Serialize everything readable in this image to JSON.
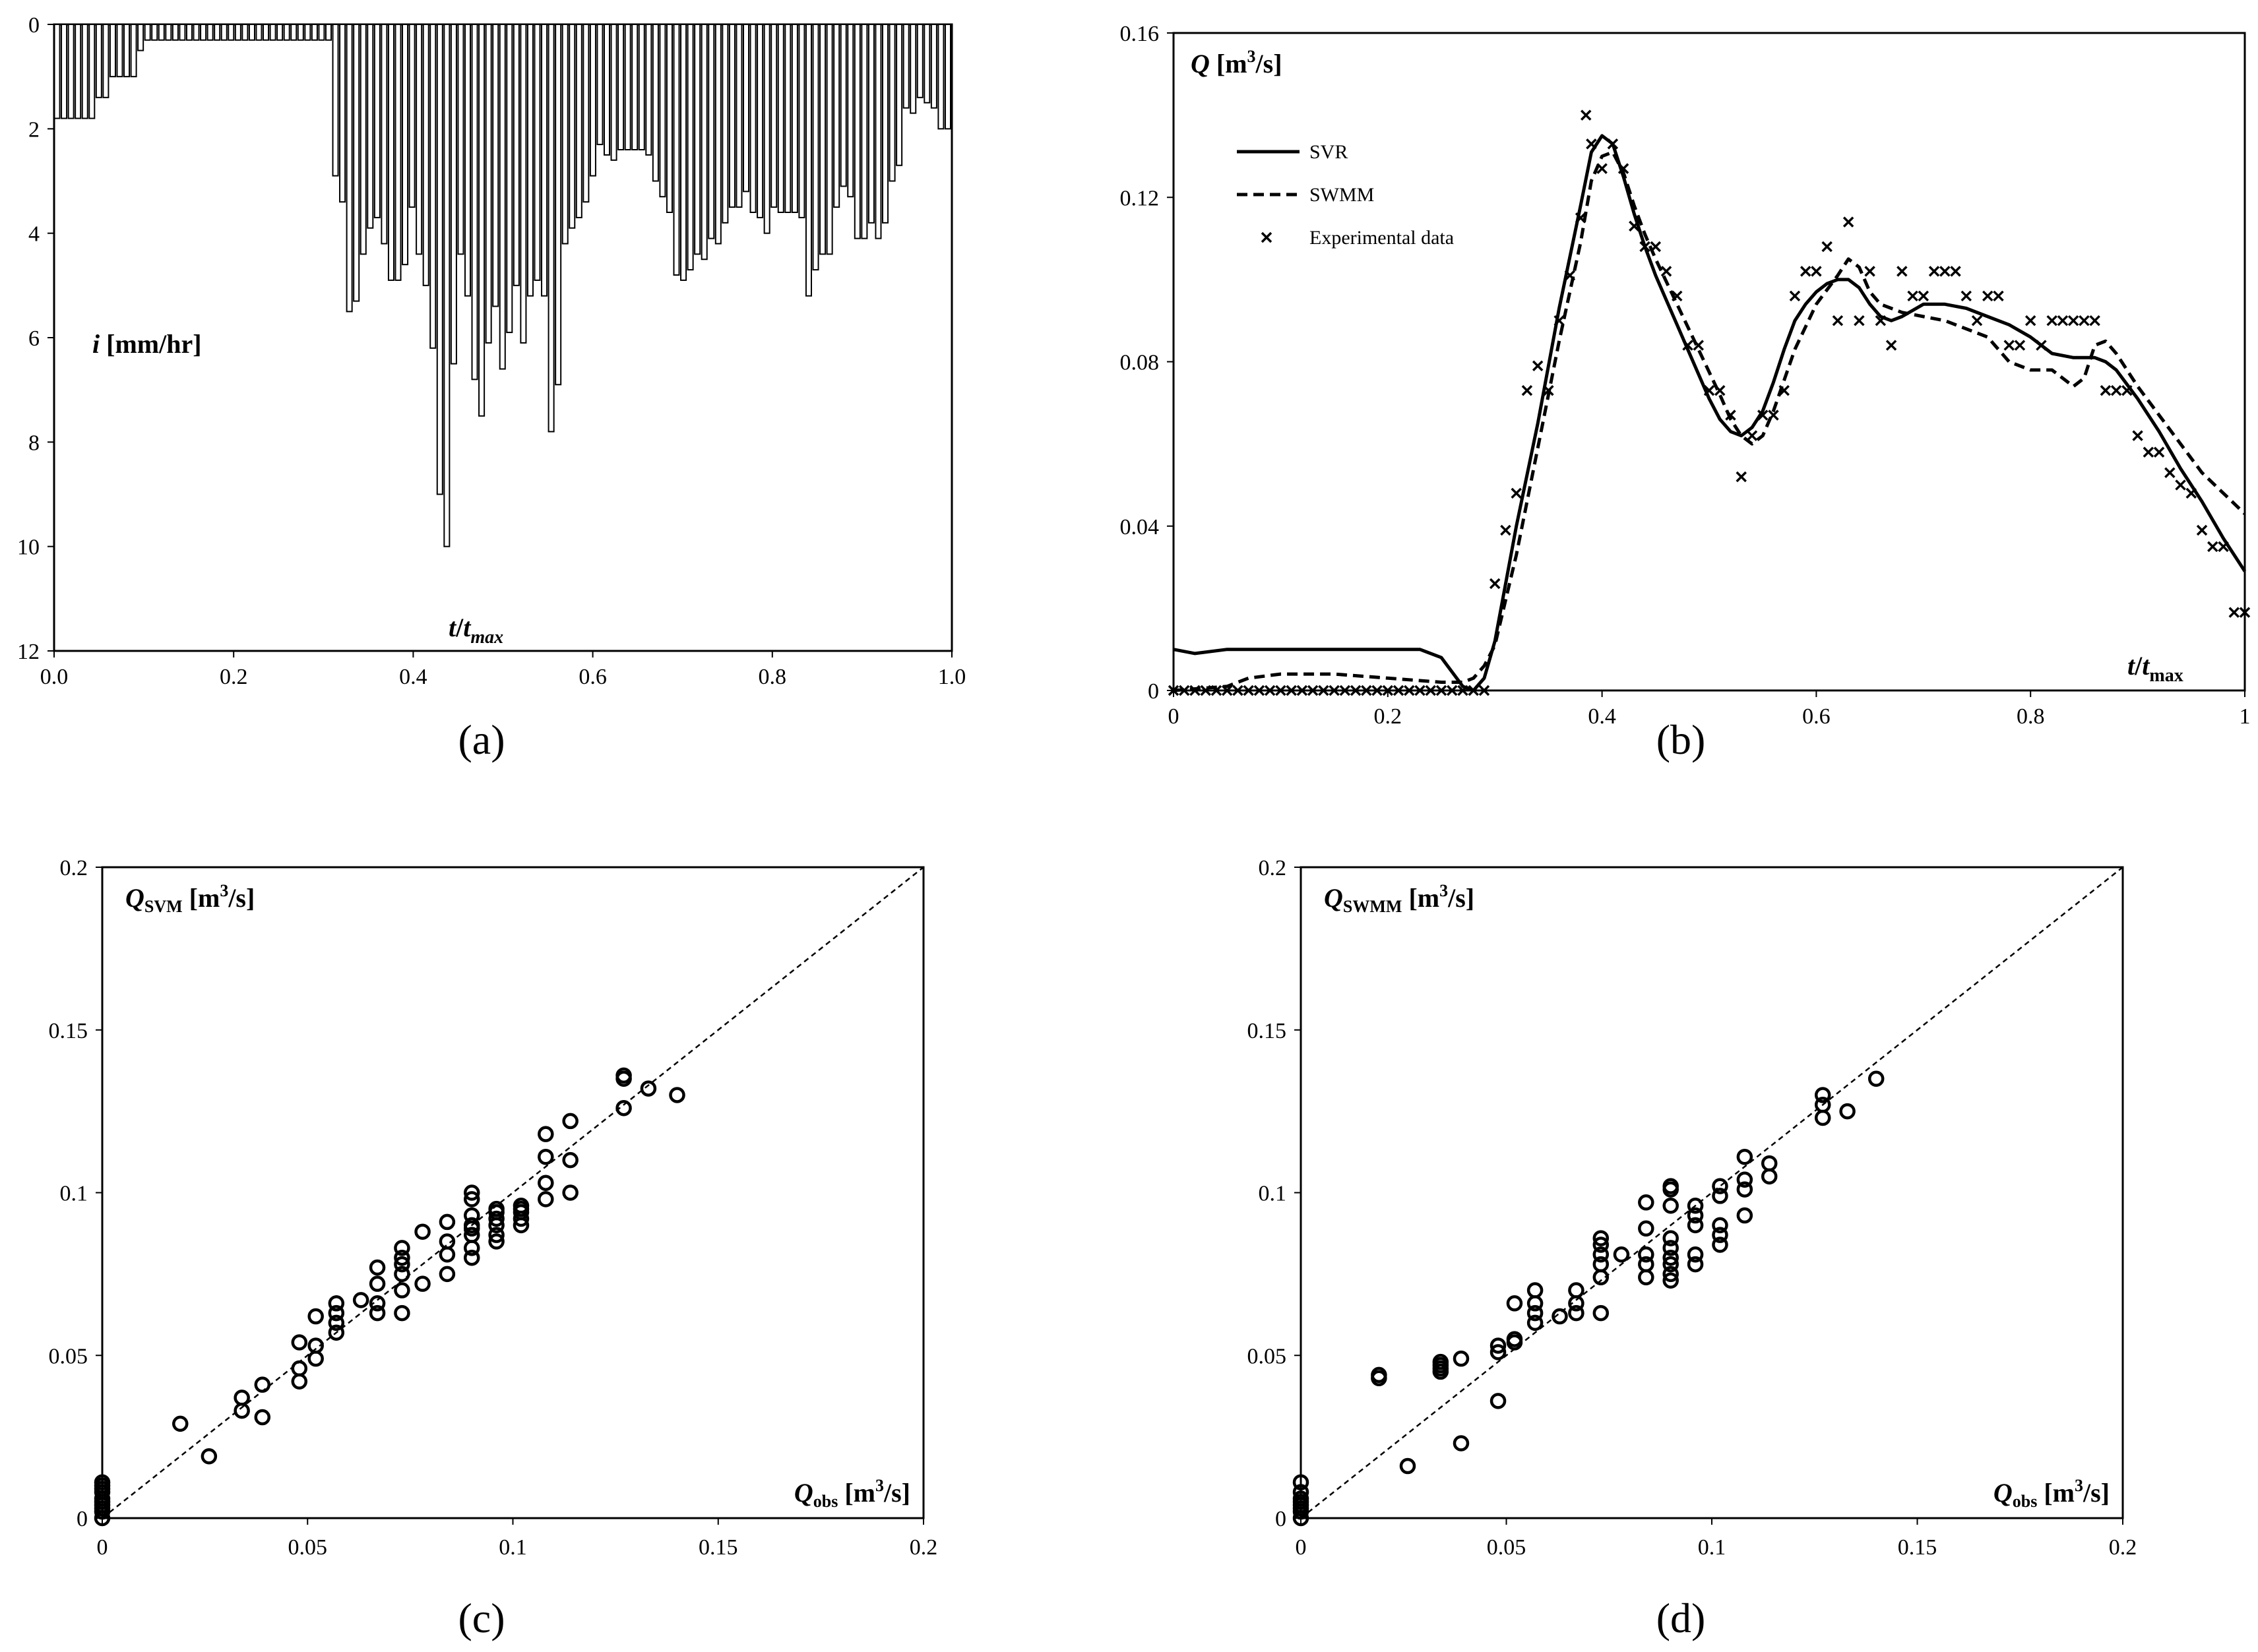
{
  "chart_data": [
    {
      "id": "a",
      "type": "bar",
      "caption": "(a)",
      "inverted_y": true,
      "ylabel": {
        "var": "i",
        "unit": "[mm/hr]"
      },
      "xlabel": {
        "t": "t",
        "sub": "max"
      },
      "xlim": [
        0,
        1
      ],
      "ylim": [
        0,
        12
      ],
      "xticks": [
        "0.0",
        "0.2",
        "0.4",
        "0.6",
        "0.8",
        "1.0"
      ],
      "yticks": [
        "0",
        "2",
        "4",
        "6",
        "8",
        "10",
        "12"
      ],
      "values": [
        1.8,
        1.8,
        1.8,
        1.8,
        1.8,
        1.8,
        1.4,
        1.4,
        1.0,
        1.0,
        1.0,
        1.0,
        0.5,
        0.3,
        0.3,
        0.3,
        0.3,
        0.3,
        0.3,
        0.3,
        0.3,
        0.3,
        0.3,
        0.3,
        0.3,
        0.3,
        0.3,
        0.3,
        0.3,
        0.3,
        0.3,
        0.3,
        0.3,
        0.3,
        0.3,
        0.3,
        0.3,
        0.3,
        0.3,
        0.3,
        2.9,
        3.4,
        5.5,
        5.3,
        4.4,
        3.9,
        3.7,
        4.2,
        4.9,
        4.9,
        4.6,
        3.5,
        4.4,
        5.0,
        6.2,
        9.0,
        10.0,
        6.5,
        4.4,
        5.2,
        6.8,
        7.5,
        6.1,
        5.4,
        6.6,
        5.9,
        5.0,
        6.1,
        5.2,
        4.9,
        5.2,
        7.8,
        6.9,
        4.2,
        3.9,
        3.7,
        3.4,
        2.9,
        2.3,
        2.5,
        2.6,
        2.4,
        2.4,
        2.4,
        2.4,
        2.5,
        3.0,
        3.3,
        3.6,
        4.8,
        4.9,
        4.7,
        4.4,
        4.5,
        4.1,
        4.2,
        3.8,
        3.5,
        3.5,
        3.2,
        3.6,
        3.7,
        4.0,
        3.5,
        3.6,
        3.6,
        3.6,
        3.7,
        5.2,
        4.7,
        4.4,
        4.4,
        3.5,
        3.1,
        3.3,
        4.1,
        4.1,
        3.8,
        4.1,
        3.8,
        3.0,
        2.7,
        1.6,
        1.7,
        1.4,
        1.5,
        1.6,
        2.0,
        2.0
      ]
    },
    {
      "id": "b",
      "type": "line",
      "caption": "(b)",
      "ylabel": {
        "var": "Q",
        "unit": "[m",
        "exp": "3",
        "unit_end": "/s]"
      },
      "xlabel": {
        "t": "t",
        "sub": "max"
      },
      "xlim": [
        0,
        1
      ],
      "ylim": [
        0,
        0.16
      ],
      "xticks": [
        "0",
        "0.2",
        "0.4",
        "0.6",
        "0.8",
        "1"
      ],
      "yticks": [
        "0",
        "0.04",
        "0.08",
        "0.12",
        "0.16"
      ],
      "legend_position": "top-left",
      "series": [
        {
          "name": "SVR",
          "style": "solid",
          "x": [
            0,
            0.02,
            0.05,
            0.1,
            0.15,
            0.2,
            0.23,
            0.25,
            0.27,
            0.28,
            0.29,
            0.3,
            0.32,
            0.34,
            0.36,
            0.38,
            0.39,
            0.4,
            0.41,
            0.42,
            0.43,
            0.44,
            0.45,
            0.46,
            0.47,
            0.48,
            0.49,
            0.5,
            0.51,
            0.52,
            0.53,
            0.54,
            0.55,
            0.56,
            0.57,
            0.58,
            0.59,
            0.6,
            0.61,
            0.62,
            0.63,
            0.64,
            0.65,
            0.66,
            0.67,
            0.68,
            0.7,
            0.72,
            0.74,
            0.76,
            0.78,
            0.8,
            0.82,
            0.84,
            0.86,
            0.87,
            0.88,
            0.9,
            0.92,
            0.94,
            0.96,
            0.98,
            1
          ],
          "y": [
            0.01,
            0.009,
            0.01,
            0.01,
            0.01,
            0.01,
            0.01,
            0.008,
            0.001,
            0.0,
            0.003,
            0.012,
            0.04,
            0.065,
            0.093,
            0.118,
            0.131,
            0.135,
            0.133,
            0.125,
            0.116,
            0.108,
            0.101,
            0.095,
            0.089,
            0.083,
            0.077,
            0.071,
            0.066,
            0.063,
            0.062,
            0.064,
            0.068,
            0.075,
            0.083,
            0.09,
            0.094,
            0.097,
            0.099,
            0.1,
            0.1,
            0.098,
            0.094,
            0.091,
            0.09,
            0.091,
            0.094,
            0.094,
            0.093,
            0.091,
            0.089,
            0.086,
            0.082,
            0.081,
            0.081,
            0.08,
            0.078,
            0.071,
            0.063,
            0.054,
            0.046,
            0.037,
            0.029
          ]
        },
        {
          "name": "SWMM",
          "style": "dashed",
          "x": [
            0,
            0.05,
            0.07,
            0.1,
            0.15,
            0.2,
            0.25,
            0.27,
            0.28,
            0.29,
            0.3,
            0.32,
            0.34,
            0.36,
            0.38,
            0.39,
            0.4,
            0.41,
            0.42,
            0.43,
            0.44,
            0.45,
            0.47,
            0.49,
            0.51,
            0.52,
            0.53,
            0.54,
            0.55,
            0.56,
            0.58,
            0.6,
            0.62,
            0.63,
            0.64,
            0.65,
            0.66,
            0.68,
            0.7,
            0.72,
            0.74,
            0.76,
            0.78,
            0.8,
            0.82,
            0.84,
            0.85,
            0.86,
            0.87,
            0.88,
            0.9,
            0.92,
            0.94,
            0.96,
            0.98,
            1
          ],
          "y": [
            0.0,
            0.001,
            0.003,
            0.004,
            0.004,
            0.003,
            0.002,
            0.002,
            0.003,
            0.006,
            0.011,
            0.033,
            0.059,
            0.085,
            0.109,
            0.124,
            0.13,
            0.131,
            0.126,
            0.118,
            0.111,
            0.105,
            0.094,
            0.083,
            0.072,
            0.066,
            0.062,
            0.06,
            0.062,
            0.068,
            0.083,
            0.094,
            0.101,
            0.105,
            0.103,
            0.097,
            0.094,
            0.092,
            0.091,
            0.09,
            0.088,
            0.086,
            0.08,
            0.078,
            0.078,
            0.074,
            0.076,
            0.084,
            0.085,
            0.082,
            0.074,
            0.067,
            0.06,
            0.053,
            0.048,
            0.043
          ]
        },
        {
          "name": "Experimental data",
          "style": "x-marker",
          "x": [
            0,
            0.01,
            0.02,
            0.03,
            0.04,
            0.05,
            0.06,
            0.07,
            0.08,
            0.09,
            0.1,
            0.11,
            0.12,
            0.13,
            0.14,
            0.15,
            0.16,
            0.17,
            0.18,
            0.19,
            0.2,
            0.21,
            0.22,
            0.23,
            0.24,
            0.25,
            0.26,
            0.27,
            0.28,
            0.29,
            0.3,
            0.31,
            0.32,
            0.33,
            0.34,
            0.35,
            0.36,
            0.37,
            0.38,
            0.385,
            0.39,
            0.4,
            0.41,
            0.42,
            0.43,
            0.44,
            0.45,
            0.46,
            0.47,
            0.48,
            0.49,
            0.5,
            0.51,
            0.52,
            0.53,
            0.54,
            0.55,
            0.56,
            0.57,
            0.58,
            0.59,
            0.6,
            0.61,
            0.62,
            0.63,
            0.64,
            0.65,
            0.66,
            0.67,
            0.68,
            0.69,
            0.7,
            0.71,
            0.72,
            0.73,
            0.74,
            0.75,
            0.76,
            0.77,
            0.78,
            0.79,
            0.8,
            0.81,
            0.82,
            0.83,
            0.84,
            0.85,
            0.86,
            0.87,
            0.88,
            0.89,
            0.9,
            0.91,
            0.92,
            0.93,
            0.94,
            0.95,
            0.96,
            0.97,
            0.98,
            0.99,
            1
          ],
          "y": [
            0,
            0,
            0,
            0,
            0,
            0,
            0,
            0,
            0,
            0,
            0,
            0,
            0,
            0,
            0,
            0,
            0,
            0,
            0,
            0,
            0,
            0,
            0,
            0,
            0,
            0,
            0,
            0,
            0,
            0,
            0.026,
            0.039,
            0.048,
            0.073,
            0.079,
            0.073,
            0.09,
            0.101,
            0.115,
            0.14,
            0.133,
            0.127,
            0.133,
            0.127,
            0.113,
            0.108,
            0.108,
            0.102,
            0.096,
            0.084,
            0.084,
            0.073,
            0.073,
            0.067,
            0.052,
            0.062,
            0.067,
            0.067,
            0.073,
            0.096,
            0.102,
            0.102,
            0.108,
            0.09,
            0.114,
            0.09,
            0.102,
            0.09,
            0.084,
            0.102,
            0.096,
            0.096,
            0.102,
            0.102,
            0.102,
            0.096,
            0.09,
            0.096,
            0.096,
            0.084,
            0.084,
            0.09,
            0.084,
            0.09,
            0.09,
            0.09,
            0.09,
            0.09,
            0.073,
            0.073,
            0.073,
            0.062,
            0.058,
            0.058,
            0.053,
            0.05,
            0.048,
            0.039,
            0.035,
            0.035,
            0.019,
            0.019
          ]
        }
      ]
    },
    {
      "id": "c",
      "type": "scatter",
      "caption": "(c)",
      "ylabel": {
        "var": "Q",
        "sub": "SVM",
        "unit": "[m",
        "exp": "3",
        "unit_end": "/s]"
      },
      "xlabel": {
        "var": "Q",
        "sub": "obs",
        "unit": "[m",
        "exp": "3",
        "unit_end": "/s]"
      },
      "xlim": [
        0,
        0.2
      ],
      "ylim": [
        0,
        0.2
      ],
      "xticks": [
        "0",
        "0.05",
        "0.1",
        "0.15",
        "0.2"
      ],
      "yticks": [
        "0",
        "0.05",
        "0.1",
        "0.15",
        "0.2"
      ],
      "reference_line": "1:1 dashed",
      "x": [
        0,
        0,
        0,
        0,
        0,
        0,
        0,
        0,
        0,
        0,
        0.019,
        0.026,
        0.034,
        0.034,
        0.039,
        0.039,
        0.048,
        0.048,
        0.048,
        0.052,
        0.052,
        0.052,
        0.057,
        0.057,
        0.057,
        0.057,
        0.063,
        0.067,
        0.067,
        0.067,
        0.067,
        0.073,
        0.073,
        0.073,
        0.073,
        0.073,
        0.073,
        0.078,
        0.078,
        0.084,
        0.084,
        0.084,
        0.084,
        0.09,
        0.09,
        0.09,
        0.09,
        0.09,
        0.09,
        0.09,
        0.09,
        0.096,
        0.096,
        0.096,
        0.096,
        0.096,
        0.096,
        0.102,
        0.102,
        0.102,
        0.102,
        0.102,
        0.108,
        0.108,
        0.108,
        0.108,
        0.114,
        0.114,
        0.114,
        0.127,
        0.127,
        0.127,
        0.133,
        0.14
      ],
      "y": [
        0,
        0.002,
        0.004,
        0.006,
        0.008,
        0.009,
        0.01,
        0.011,
        0.003,
        0.005,
        0.029,
        0.019,
        0.033,
        0.037,
        0.031,
        0.041,
        0.042,
        0.046,
        0.054,
        0.049,
        0.053,
        0.062,
        0.057,
        0.06,
        0.063,
        0.066,
        0.067,
        0.063,
        0.066,
        0.072,
        0.077,
        0.063,
        0.07,
        0.075,
        0.078,
        0.08,
        0.083,
        0.072,
        0.088,
        0.075,
        0.081,
        0.085,
        0.091,
        0.08,
        0.083,
        0.087,
        0.089,
        0.09,
        0.093,
        0.098,
        0.1,
        0.085,
        0.087,
        0.09,
        0.092,
        0.094,
        0.095,
        0.09,
        0.092,
        0.094,
        0.095,
        0.096,
        0.098,
        0.103,
        0.111,
        0.118,
        0.1,
        0.11,
        0.122,
        0.126,
        0.135,
        0.136,
        0.132,
        0.13
      ]
    },
    {
      "id": "d",
      "type": "scatter",
      "caption": "(d)",
      "ylabel": {
        "var": "Q",
        "sub": "SWMM",
        "unit": "[m",
        "exp": "3",
        "unit_end": "/s]"
      },
      "xlabel": {
        "var": "Q",
        "sub": "obs",
        "unit": "[m",
        "exp": "3",
        "unit_end": "/s]"
      },
      "xlim": [
        0,
        0.2
      ],
      "ylim": [
        0,
        0.2
      ],
      "xticks": [
        "0",
        "0.05",
        "0.1",
        "0.15",
        "0.2"
      ],
      "yticks": [
        "0",
        "0.05",
        "0.1",
        "0.15",
        "0.2"
      ],
      "reference_line": "1:1 dashed",
      "x": [
        0,
        0,
        0,
        0,
        0,
        0,
        0,
        0,
        0.019,
        0.019,
        0.026,
        0.034,
        0.034,
        0.034,
        0.034,
        0.039,
        0.039,
        0.048,
        0.048,
        0.048,
        0.052,
        0.052,
        0.052,
        0.057,
        0.057,
        0.057,
        0.057,
        0.063,
        0.067,
        0.067,
        0.067,
        0.073,
        0.073,
        0.073,
        0.073,
        0.073,
        0.073,
        0.078,
        0.084,
        0.084,
        0.084,
        0.084,
        0.084,
        0.09,
        0.09,
        0.09,
        0.09,
        0.09,
        0.09,
        0.09,
        0.09,
        0.09,
        0.096,
        0.096,
        0.096,
        0.096,
        0.096,
        0.102,
        0.102,
        0.102,
        0.102,
        0.102,
        0.108,
        0.108,
        0.108,
        0.108,
        0.114,
        0.114,
        0.127,
        0.127,
        0.127,
        0.133,
        0.14
      ],
      "y": [
        0,
        0.002,
        0.004,
        0.006,
        0.008,
        0.011,
        0.003,
        0.005,
        0.043,
        0.044,
        0.016,
        0.045,
        0.046,
        0.047,
        0.048,
        0.023,
        0.049,
        0.036,
        0.051,
        0.053,
        0.054,
        0.055,
        0.066,
        0.06,
        0.063,
        0.066,
        0.07,
        0.062,
        0.063,
        0.066,
        0.07,
        0.063,
        0.074,
        0.078,
        0.081,
        0.084,
        0.086,
        0.081,
        0.074,
        0.078,
        0.081,
        0.089,
        0.097,
        0.073,
        0.075,
        0.078,
        0.08,
        0.083,
        0.086,
        0.096,
        0.101,
        0.102,
        0.078,
        0.081,
        0.09,
        0.093,
        0.096,
        0.084,
        0.087,
        0.09,
        0.099,
        0.102,
        0.093,
        0.101,
        0.104,
        0.111,
        0.105,
        0.109,
        0.123,
        0.127,
        0.13,
        0.125,
        0.135
      ]
    }
  ]
}
